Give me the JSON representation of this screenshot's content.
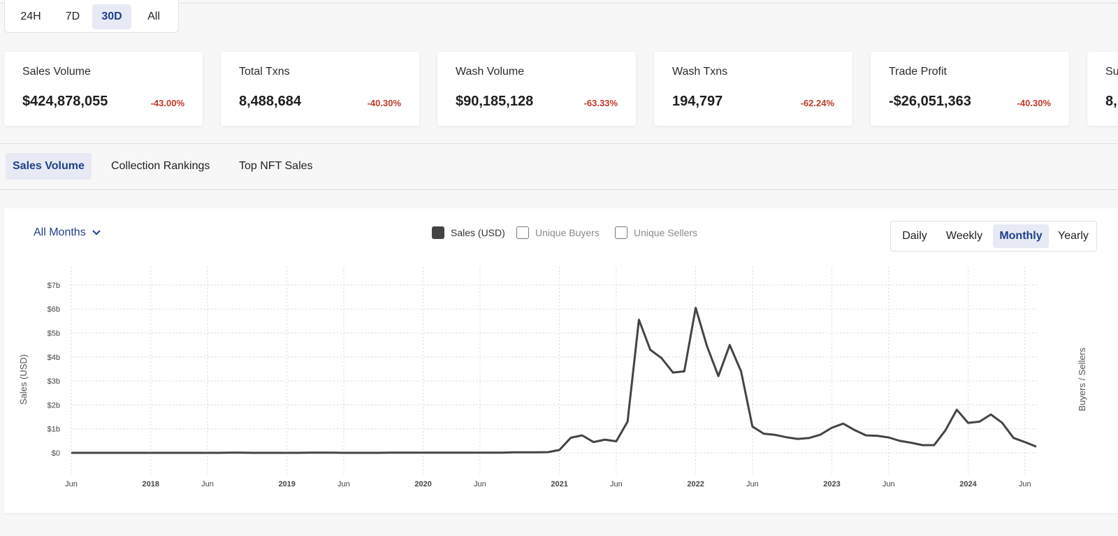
{
  "time_range": {
    "options": [
      "24H",
      "7D",
      "30D",
      "All"
    ],
    "selected": "30D"
  },
  "stats": [
    {
      "label": "Sales Volume",
      "value": "$424,878,055",
      "change": "-43.00%"
    },
    {
      "label": "Total Txns",
      "value": "8,488,684",
      "change": "-40.30%"
    },
    {
      "label": "Wash Volume",
      "value": "$90,185,128",
      "change": "-63.33%"
    },
    {
      "label": "Wash Txns",
      "value": "194,797",
      "change": "-62.24%"
    },
    {
      "label": "Trade Profit",
      "value": "-$26,051,363",
      "change": "-40.30%"
    },
    {
      "label": "Su",
      "value": "8,",
      "change": ""
    }
  ],
  "tabs": {
    "items": [
      "Sales Volume",
      "Collection Rankings",
      "Top NFT Sales"
    ],
    "selected": "Sales Volume"
  },
  "filter": {
    "label": "All Months"
  },
  "legend": [
    {
      "label": "Sales (USD)",
      "checked": true
    },
    {
      "label": "Unique Buyers",
      "checked": false
    },
    {
      "label": "Unique Sellers",
      "checked": false
    }
  ],
  "period": {
    "options": [
      "Daily",
      "Weekly",
      "Monthly",
      "Yearly"
    ],
    "selected": "Monthly"
  },
  "colors": {
    "accent": "#1f3f88",
    "negative": "#c0392b",
    "line": "#444444"
  },
  "chart_data": {
    "type": "line",
    "ylabel": "Sales (USD)",
    "y2label": "Buyers / Sellers",
    "ylim": [
      0,
      7
    ],
    "y_ticks": [
      "$0",
      "$1b",
      "$2b",
      "$3b",
      "$4b",
      "$5b",
      "$6b",
      "$7b"
    ],
    "x_ticks": [
      "Jun",
      "2018",
      "Jun",
      "2019",
      "Jun",
      "2020",
      "Jun",
      "2021",
      "Jun",
      "2022",
      "Jun",
      "2023",
      "Jun",
      "2024",
      "Jun"
    ],
    "grid": true,
    "series": [
      {
        "name": "Sales (USD)",
        "x": [
          "2017-06",
          "2017-07",
          "2017-08",
          "2017-09",
          "2017-10",
          "2017-11",
          "2017-12",
          "2018-01",
          "2018-02",
          "2018-03",
          "2018-04",
          "2018-05",
          "2018-06",
          "2018-07",
          "2018-08",
          "2018-09",
          "2018-10",
          "2018-11",
          "2018-12",
          "2019-01",
          "2019-02",
          "2019-03",
          "2019-04",
          "2019-05",
          "2019-06",
          "2019-07",
          "2019-08",
          "2019-09",
          "2019-10",
          "2019-11",
          "2019-12",
          "2020-01",
          "2020-02",
          "2020-03",
          "2020-04",
          "2020-05",
          "2020-06",
          "2020-07",
          "2020-08",
          "2020-09",
          "2020-10",
          "2020-11",
          "2020-12",
          "2021-01",
          "2021-02",
          "2021-03",
          "2021-04",
          "2021-05",
          "2021-06",
          "2021-07",
          "2021-08",
          "2021-09",
          "2021-10",
          "2021-11",
          "2021-12",
          "2022-01",
          "2022-02",
          "2022-03",
          "2022-04",
          "2022-05",
          "2022-06",
          "2022-07",
          "2022-08",
          "2022-09",
          "2022-10",
          "2022-11",
          "2022-12",
          "2023-01",
          "2023-02",
          "2023-03",
          "2023-04",
          "2023-05",
          "2023-06",
          "2023-07",
          "2023-08",
          "2023-09",
          "2023-10",
          "2023-11",
          "2023-12",
          "2024-01",
          "2024-02",
          "2024-03",
          "2024-04",
          "2024-05",
          "2024-06",
          "2024-07"
        ],
        "values": [
          0.0,
          0.0,
          0.0,
          0.0,
          0.0,
          0.0,
          0.0,
          0.0,
          0.0,
          0.0,
          0.0,
          0.0,
          0.0,
          0.0,
          0.01,
          0.01,
          0.0,
          0.0,
          0.0,
          0.0,
          0.0,
          0.01,
          0.01,
          0.01,
          0.0,
          0.0,
          0.0,
          0.0,
          0.01,
          0.01,
          0.01,
          0.01,
          0.01,
          0.01,
          0.01,
          0.01,
          0.01,
          0.01,
          0.01,
          0.02,
          0.02,
          0.02,
          0.03,
          0.12,
          0.63,
          0.73,
          0.45,
          0.55,
          0.48,
          1.3,
          5.55,
          4.3,
          3.95,
          3.35,
          3.4,
          6.05,
          4.45,
          3.2,
          4.5,
          3.4,
          1.1,
          0.8,
          0.75,
          0.65,
          0.58,
          0.62,
          0.76,
          1.05,
          1.22,
          0.95,
          0.73,
          0.71,
          0.64,
          0.5,
          0.42,
          0.32,
          0.32,
          0.94,
          1.8,
          1.25,
          1.3,
          1.6,
          1.25,
          0.62,
          0.45,
          0.26
        ]
      }
    ]
  }
}
